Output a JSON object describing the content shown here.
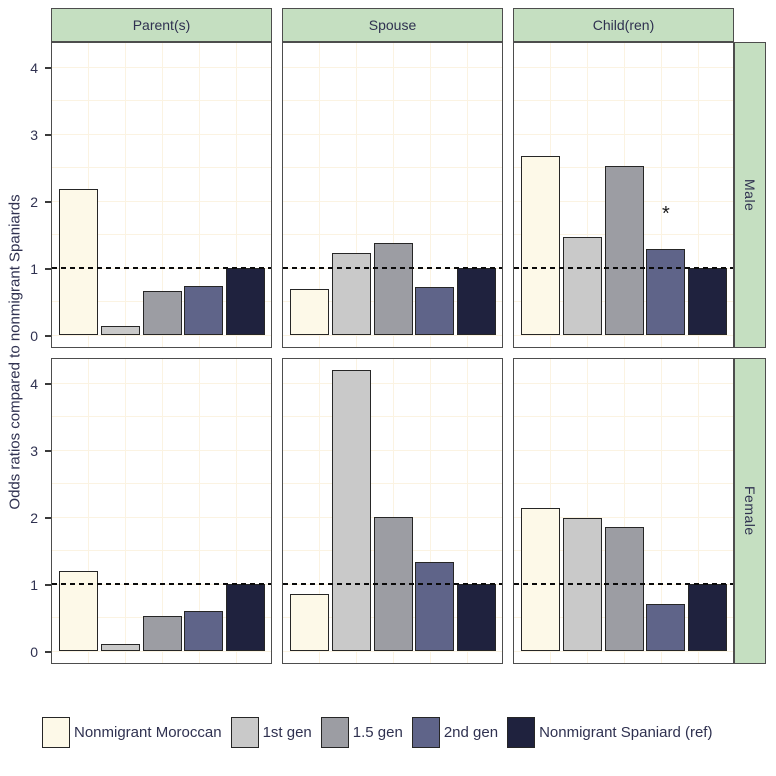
{
  "chart_data": {
    "type": "bar",
    "title": "",
    "ylabel": "Odds ratios compared to nonmigrant Spaniards",
    "xlabel": "",
    "ylim": [
      -0.18,
      4.38
    ],
    "yticks": [
      0,
      1,
      2,
      3,
      4
    ],
    "reference_line": 1,
    "grid": "on",
    "legend_position": "bottom",
    "faceting": {
      "cols": [
        "Parent(s)",
        "Spouse",
        "Child(ren)"
      ],
      "rows": [
        "Male",
        "Female"
      ]
    },
    "series": [
      {
        "name": "Nonmigrant Moroccan",
        "color": "#FDF9E8"
      },
      {
        "name": "1st gen",
        "color": "#C9C9C9"
      },
      {
        "name": "1.5 gen",
        "color": "#9C9DA3"
      },
      {
        "name": "2nd gen",
        "color": "#5F6489"
      },
      {
        "name": "Nonmigrant Spaniard (ref)",
        "color": "#1F223E"
      }
    ],
    "panels": [
      {
        "row": "Male",
        "col": "Parent(s)",
        "values": [
          2.18,
          0.14,
          0.65,
          0.73,
          1.0
        ]
      },
      {
        "row": "Male",
        "col": "Spouse",
        "values": [
          0.69,
          1.23,
          1.38,
          0.71,
          1.0
        ]
      },
      {
        "row": "Male",
        "col": "Child(ren)",
        "values": [
          2.67,
          1.46,
          2.53,
          1.29,
          1.0
        ],
        "annotations": [
          {
            "series_index": 3,
            "text": "*",
            "y": 1.66
          }
        ]
      },
      {
        "row": "Female",
        "col": "Parent(s)",
        "values": [
          1.2,
          0.1,
          0.52,
          0.6,
          1.0
        ]
      },
      {
        "row": "Female",
        "col": "Spouse",
        "values": [
          0.85,
          4.2,
          2.0,
          1.33,
          1.0
        ]
      },
      {
        "row": "Female",
        "col": "Child(ren)",
        "values": [
          2.13,
          1.98,
          1.85,
          0.7,
          1.0
        ]
      }
    ]
  },
  "colors": {
    "strip_background": "#C5DFC1",
    "strip_border": "#4D4D4D",
    "panel_border": "#4D4D4D",
    "bar_border": "#262626",
    "gridline": "#FBF3E2",
    "text": "#2F3150",
    "reference_line": "#0A0A0A",
    "background": "#FFFFFF"
  }
}
